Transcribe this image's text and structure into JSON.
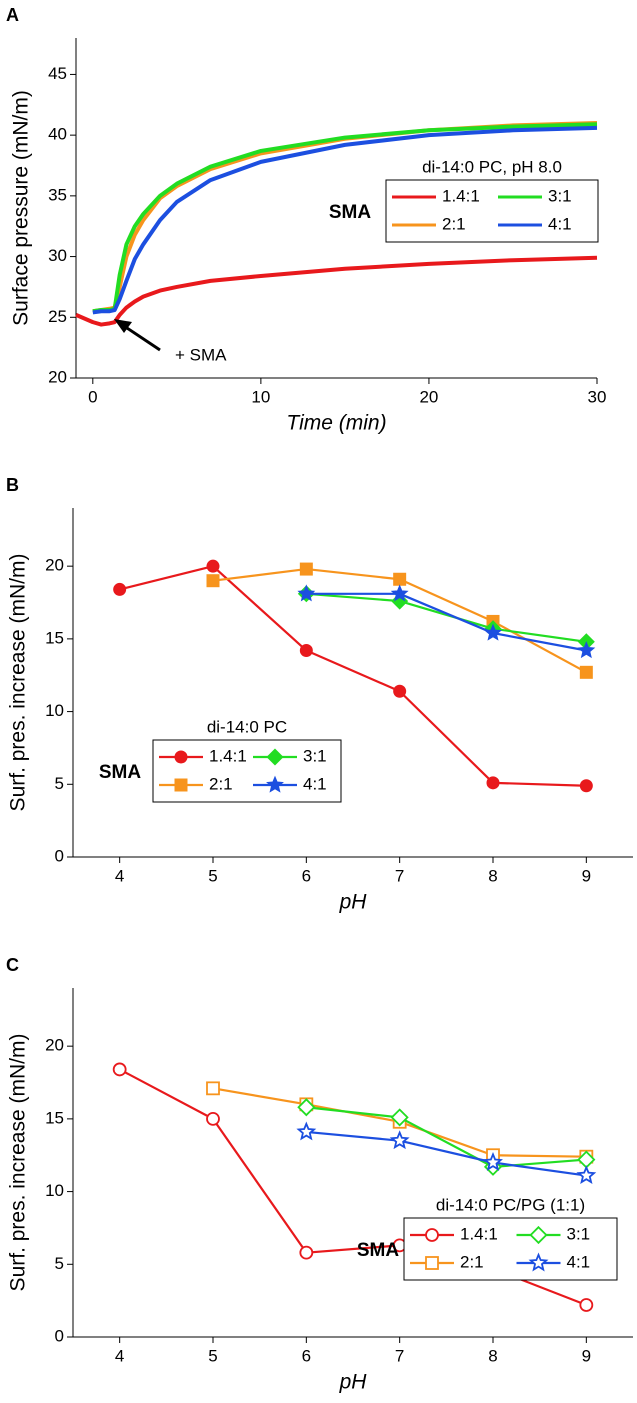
{
  "chart_data": [
    {
      "type": "line",
      "panel_label": "A",
      "x_label": "Time (min)",
      "y_label": "Surface pressure (mN/m)",
      "xlim": [
        -1,
        30
      ],
      "ylim": [
        20,
        48
      ],
      "xticks": [
        0,
        10,
        20,
        30
      ],
      "yticks": [
        20,
        25,
        30,
        35,
        40,
        45
      ],
      "legend_title": "di-14:0 PC, pH 8.0",
      "legend_label": "SMA",
      "annotation": "+ SMA",
      "marker": false,
      "x": [
        -1,
        0,
        0.5,
        1,
        1.3,
        1.6,
        2,
        2.5,
        3,
        4,
        5,
        7,
        10,
        15,
        20,
        25,
        30
      ],
      "series": [
        {
          "name": "1.4:1",
          "color": "#e8191c",
          "values": [
            25.2,
            24.6,
            24.4,
            24.5,
            24.6,
            25.2,
            25.8,
            26.3,
            26.7,
            27.2,
            27.5,
            28.0,
            28.4,
            29.0,
            29.4,
            29.7,
            29.9
          ]
        },
        {
          "name": "2:1",
          "color": "#f7941d",
          "values": [
            null,
            25.5,
            25.6,
            25.7,
            25.8,
            27.5,
            30.0,
            31.8,
            33.0,
            34.8,
            35.8,
            37.2,
            38.5,
            39.7,
            40.4,
            40.8,
            41.0
          ]
        },
        {
          "name": "3:1",
          "color": "#22dd22",
          "values": [
            null,
            25.5,
            25.6,
            25.6,
            25.7,
            28.5,
            31.0,
            32.5,
            33.5,
            35.0,
            36.0,
            37.4,
            38.7,
            39.8,
            40.4,
            40.7,
            40.9
          ]
        },
        {
          "name": "4:1",
          "color": "#1c4fe0",
          "values": [
            null,
            25.4,
            25.5,
            25.5,
            25.6,
            26.5,
            28.0,
            29.8,
            31.0,
            33.0,
            34.5,
            36.3,
            37.8,
            39.2,
            40.0,
            40.4,
            40.6
          ]
        }
      ]
    },
    {
      "type": "line",
      "panel_label": "B",
      "x_label": "pH",
      "y_label": "Surf. pres. increase (mN/m)",
      "xlim": [
        3.5,
        9.5
      ],
      "ylim": [
        0,
        24
      ],
      "xticks": [
        4,
        5,
        6,
        7,
        8,
        9
      ],
      "yticks": [
        0,
        5,
        10,
        15,
        20
      ],
      "legend_title": "di-14:0 PC",
      "legend_label": "SMA",
      "marker": true,
      "filled": true,
      "x": [
        4,
        5,
        6,
        7,
        8,
        9
      ],
      "series": [
        {
          "name": "1.4:1",
          "color": "#e8191c",
          "marker": "circle",
          "values": [
            18.4,
            20.0,
            14.2,
            11.4,
            5.1,
            4.9
          ]
        },
        {
          "name": "2:1",
          "color": "#f7941d",
          "marker": "square",
          "values": [
            null,
            19.0,
            19.8,
            19.1,
            16.2,
            12.7
          ]
        },
        {
          "name": "3:1",
          "color": "#22dd22",
          "marker": "diamond",
          "values": [
            null,
            null,
            18.1,
            17.6,
            15.7,
            14.8
          ]
        },
        {
          "name": "4:1",
          "color": "#1c4fe0",
          "marker": "star",
          "values": [
            null,
            null,
            18.1,
            18.1,
            15.4,
            14.2
          ]
        }
      ]
    },
    {
      "type": "line",
      "panel_label": "C",
      "x_label": "pH",
      "y_label": "Surf. pres. increase (mN/m)",
      "xlim": [
        3.5,
        9.5
      ],
      "ylim": [
        0,
        24
      ],
      "xticks": [
        4,
        5,
        6,
        7,
        8,
        9
      ],
      "yticks": [
        0,
        5,
        10,
        15,
        20
      ],
      "legend_title": "di-14:0 PC/PG (1:1)",
      "legend_label": "SMA",
      "marker": true,
      "filled": false,
      "x": [
        4,
        5,
        6,
        7,
        8,
        9
      ],
      "series": [
        {
          "name": "1.4:1",
          "color": "#e8191c",
          "marker": "circle",
          "values": [
            18.4,
            15.0,
            5.8,
            6.3,
            4.7,
            2.2
          ]
        },
        {
          "name": "2:1",
          "color": "#f7941d",
          "marker": "square",
          "values": [
            null,
            17.1,
            16.0,
            14.8,
            12.5,
            12.4
          ]
        },
        {
          "name": "3:1",
          "color": "#22dd22",
          "marker": "diamond",
          "values": [
            null,
            null,
            15.8,
            15.1,
            11.7,
            12.2
          ]
        },
        {
          "name": "4:1",
          "color": "#1c4fe0",
          "marker": "star",
          "values": [
            null,
            null,
            14.1,
            13.5,
            12.0,
            11.1
          ]
        }
      ]
    }
  ]
}
